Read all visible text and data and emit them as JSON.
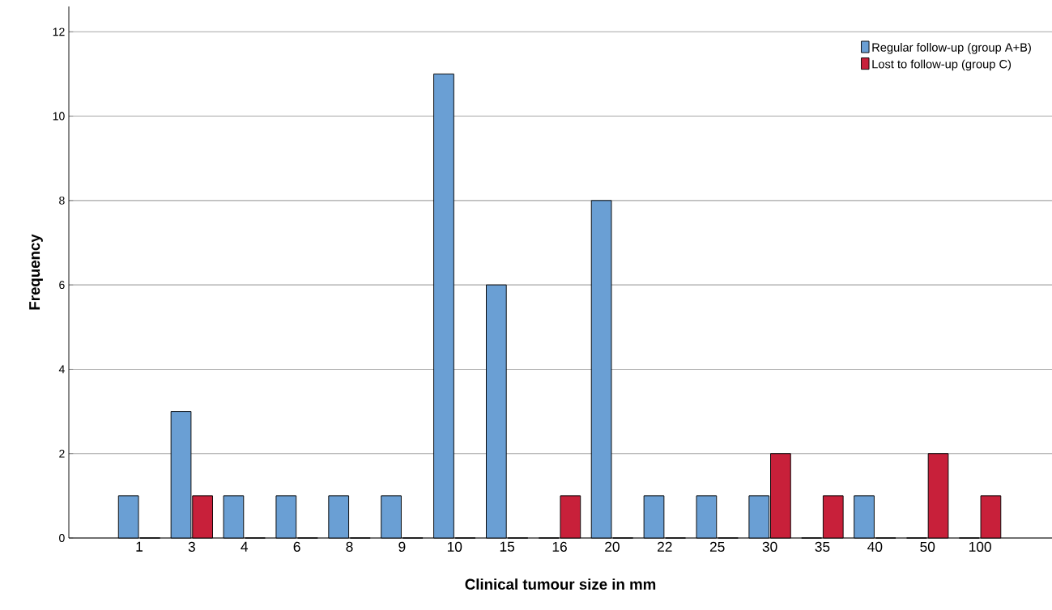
{
  "chart_data": {
    "type": "bar",
    "xlabel": "Clinical tumour size in mm",
    "ylabel": "Frequency",
    "categories": [
      "1",
      "3",
      "4",
      "6",
      "8",
      "9",
      "10",
      "15",
      "16",
      "20",
      "22",
      "25",
      "30",
      "35",
      "40",
      "50",
      "100"
    ],
    "series": [
      {
        "name": "Regular follow-up (group A+B)",
        "color": "#6a9fd4",
        "values": [
          1,
          3,
          1,
          1,
          1,
          1,
          11,
          6,
          0,
          8,
          1,
          1,
          1,
          0,
          1,
          0,
          0
        ]
      },
      {
        "name": "Lost to follow-up (group C)",
        "color": "#c8203a",
        "values": [
          0,
          1,
          0,
          0,
          0,
          0,
          0,
          0,
          1,
          0,
          0,
          0,
          2,
          1,
          0,
          2,
          1
        ]
      }
    ],
    "ylim": [
      0,
      12.6
    ],
    "yticks": [
      0,
      2,
      4,
      6,
      8,
      10,
      12
    ],
    "grid": "y",
    "legend": "top right"
  }
}
